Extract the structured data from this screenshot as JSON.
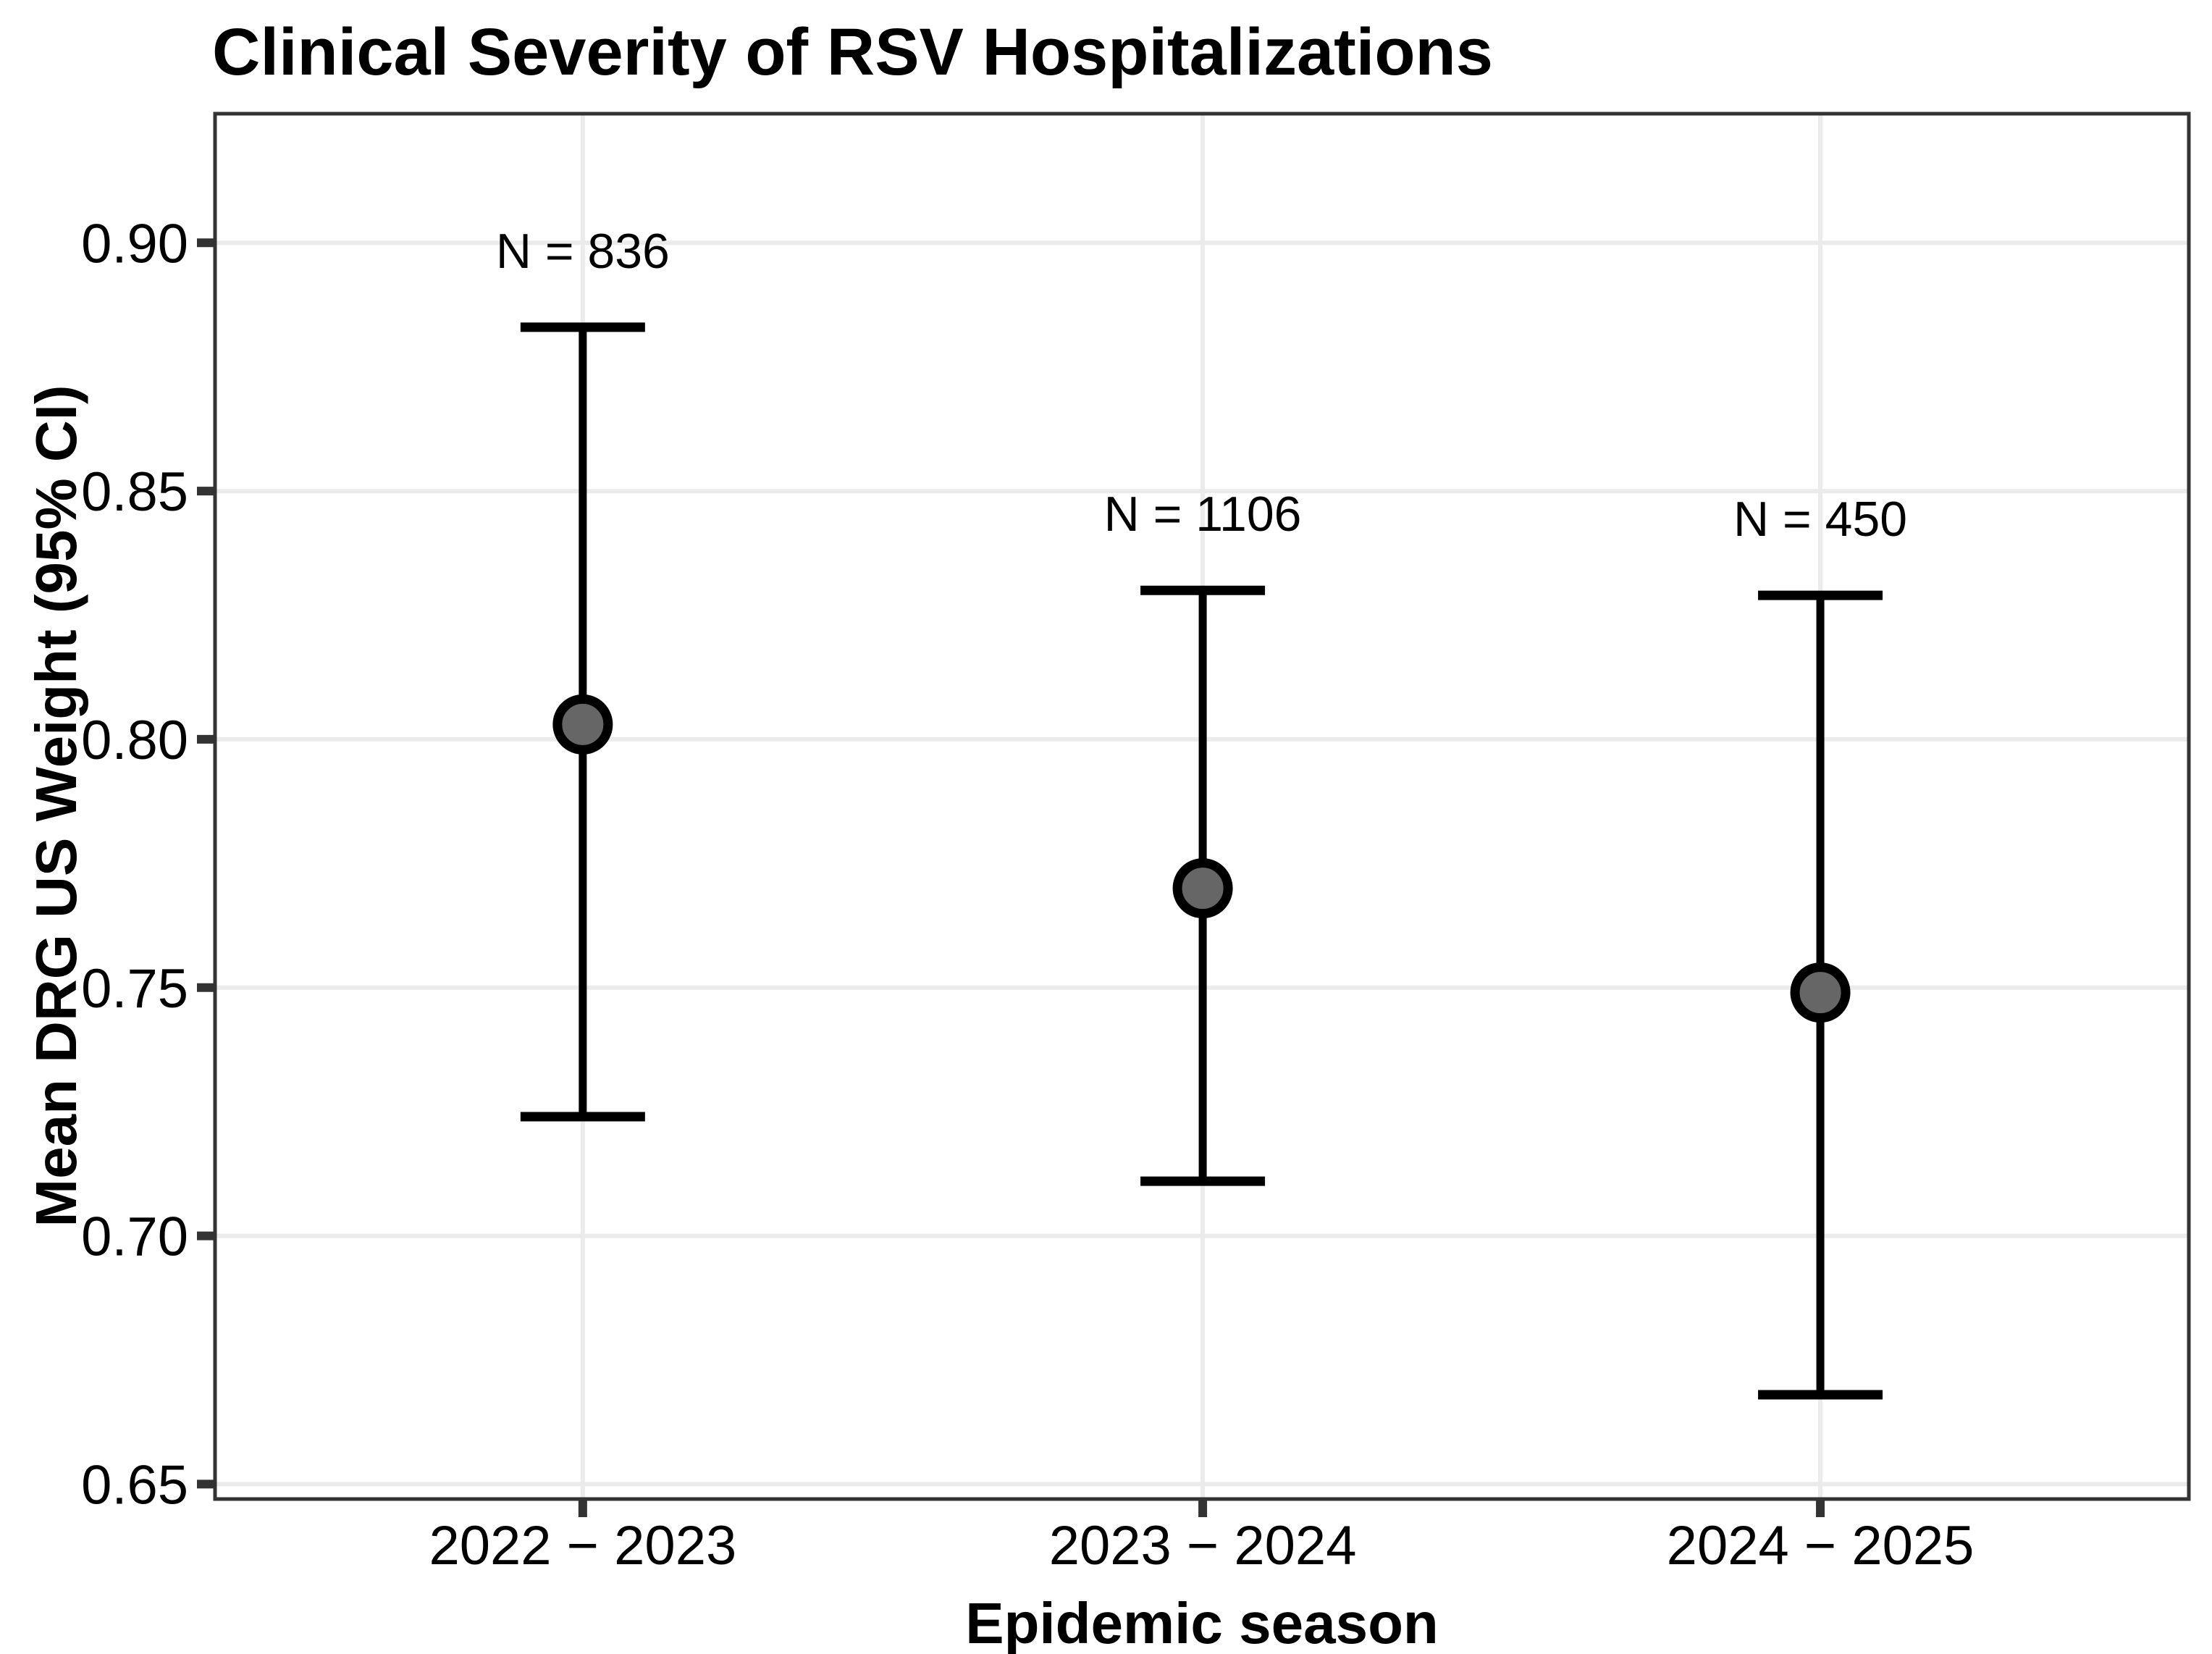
{
  "chart_data": {
    "type": "scatter",
    "subtype": "point-with-95ci-errorbars",
    "title": "Clinical Severity of RSV Hospitalizations",
    "xlabel": "Epidemic season",
    "ylabel": "Mean DRG US Weight (95% CI)",
    "categories": [
      "2022 − 2023",
      "2023 − 2024",
      "2024 − 2025"
    ],
    "points": [
      {
        "season": "2022 − 2023",
        "n": 836,
        "n_label": "N = 836",
        "mean": 0.803,
        "ci_low": 0.724,
        "ci_high": 0.883
      },
      {
        "season": "2023 − 2024",
        "n": 1106,
        "n_label": "N = 1106",
        "mean": 0.77,
        "ci_low": 0.711,
        "ci_high": 0.83
      },
      {
        "season": "2024 − 2025",
        "n": 450,
        "n_label": "N = 450",
        "mean": 0.749,
        "ci_low": 0.668,
        "ci_high": 0.829
      }
    ],
    "y_ticks": [
      0.65,
      0.7,
      0.75,
      0.8,
      0.85,
      0.9
    ],
    "y_tick_labels": [
      "0.65",
      "0.70",
      "0.75",
      "0.80",
      "0.85",
      "0.90"
    ],
    "ylim": [
      0.647,
      0.926
    ],
    "grid": "major-only",
    "legend": "none",
    "colors": {
      "background": "#ffffff",
      "panel_background": "#ffffff",
      "panel_border": "#333333",
      "gridline": "#ebebeb",
      "tick": "#333333",
      "errorbar": "#000000",
      "point_fill": "#666666",
      "point_stroke": "#000000",
      "text": "#000000"
    }
  }
}
